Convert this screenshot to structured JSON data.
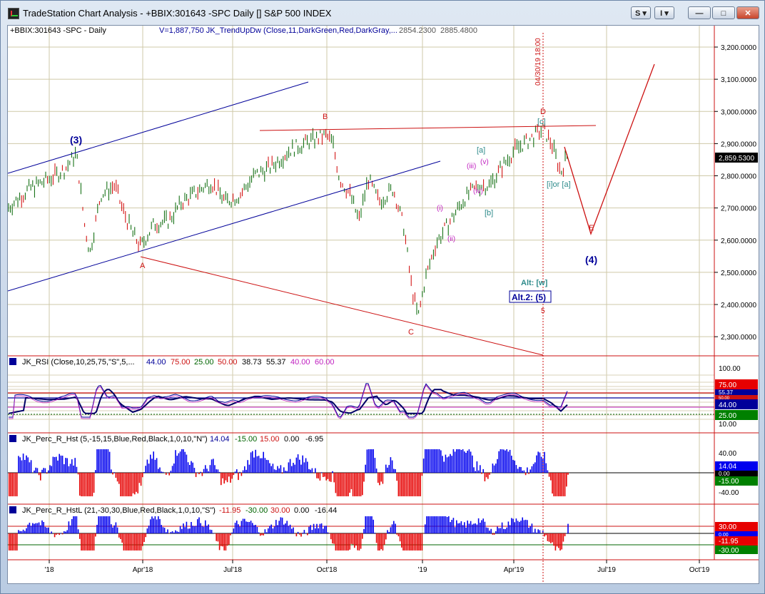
{
  "window": {
    "title": "TradeStation Chart Analysis - +BBIX:301643 -SPC Daily [] S&P 500 INDEX",
    "buttons": {
      "s": "S ▾",
      "i": "I ▾",
      "minimize": "—",
      "maximize": "□",
      "close": "✕"
    }
  },
  "chart": {
    "symbol_label": "+BBIX:301643 -SPC - Daily",
    "study_label": "V=1,887,750  JK_TrendUpDw (Close,11,DarkGreen,Red,DarkGray,...",
    "study_val1": "2854.2300",
    "study_val2": "2885.4800",
    "date_marker": "04/30/19 18:00",
    "last_price": "2,859.5300",
    "price_axis": [
      {
        "label": "3,200.0000",
        "v": 3200
      },
      {
        "label": "3,100.0000",
        "v": 3100
      },
      {
        "label": "3,000.0000",
        "v": 3000
      },
      {
        "label": "2,900.0000",
        "v": 2900
      },
      {
        "label": "2,800.0000",
        "v": 2800
      },
      {
        "label": "2,700.0000",
        "v": 2700
      },
      {
        "label": "2,600.0000",
        "v": 2600
      },
      {
        "label": "2,500.0000",
        "v": 2500
      },
      {
        "label": "2,400.0000",
        "v": 2400
      },
      {
        "label": "2,300.0000",
        "v": 2300
      }
    ],
    "x_axis": [
      "'18",
      "Apr'18",
      "Jul'18",
      "Oct'18",
      "'19",
      "Apr'19",
      "Jul'19",
      "Oct'19"
    ],
    "annotations": {
      "w3": "(3)",
      "A": "A",
      "B": "B",
      "C": "C",
      "D": "D",
      "E": "E",
      "w4": "(4)",
      "a_br": "[a]",
      "b_br": "[b]",
      "c_br": "[c]",
      "iii": "(iii)",
      "v": "(v)",
      "iv": "(iv)",
      "i": "(i)",
      "ii": "(ii)",
      "i_or_a": "[i]or [a]",
      "alt": "Alt:  [w]",
      "alt2": "Alt.2: (5)",
      "five": "5"
    },
    "colors": {
      "up": "#006400",
      "down": "#d00000",
      "blue": "#000099",
      "teal": "#2e8b8b",
      "magenta": "#c020c0",
      "red": "#cc1111"
    }
  },
  "rsi": {
    "label": "JK_RSI (Close,10,25,75,\"S\",5,...",
    "vals": [
      "44.00",
      "75.00",
      "25.00",
      "50.00",
      "38.73",
      "55.37",
      "40.00",
      "60.00"
    ],
    "axis": [
      "100.00",
      "10.00"
    ],
    "tags": {
      "t75": "75.00",
      "t55": "55.37",
      "t50": "50.00",
      "t44": "44.00",
      "t25": "25.00"
    }
  },
  "percr": {
    "label": "JK_Perc_R_Hst (5,-15,15,Blue,Red,Black,1,0,10,\"N\")",
    "vals": [
      "14.04",
      "-15.00",
      "15.00",
      "0.00",
      "-6.95"
    ],
    "axis": [
      "40.00",
      "-40.00"
    ],
    "tags": {
      "t14": "14.04",
      "t0": "0.00",
      "tm15": "-15.00"
    }
  },
  "percrl": {
    "label": "JK_Perc_R_HstL (21,-30,30,Blue,Red,Black,1,0,10,\"S\")",
    "vals": [
      "-11.95",
      "-30.00",
      "30.00",
      "0.00",
      "-16.44"
    ],
    "tags": {
      "t30": "30.00",
      "t0": "0.00",
      "tm1195": "-11.95",
      "tm30": "-30.00"
    }
  }
}
